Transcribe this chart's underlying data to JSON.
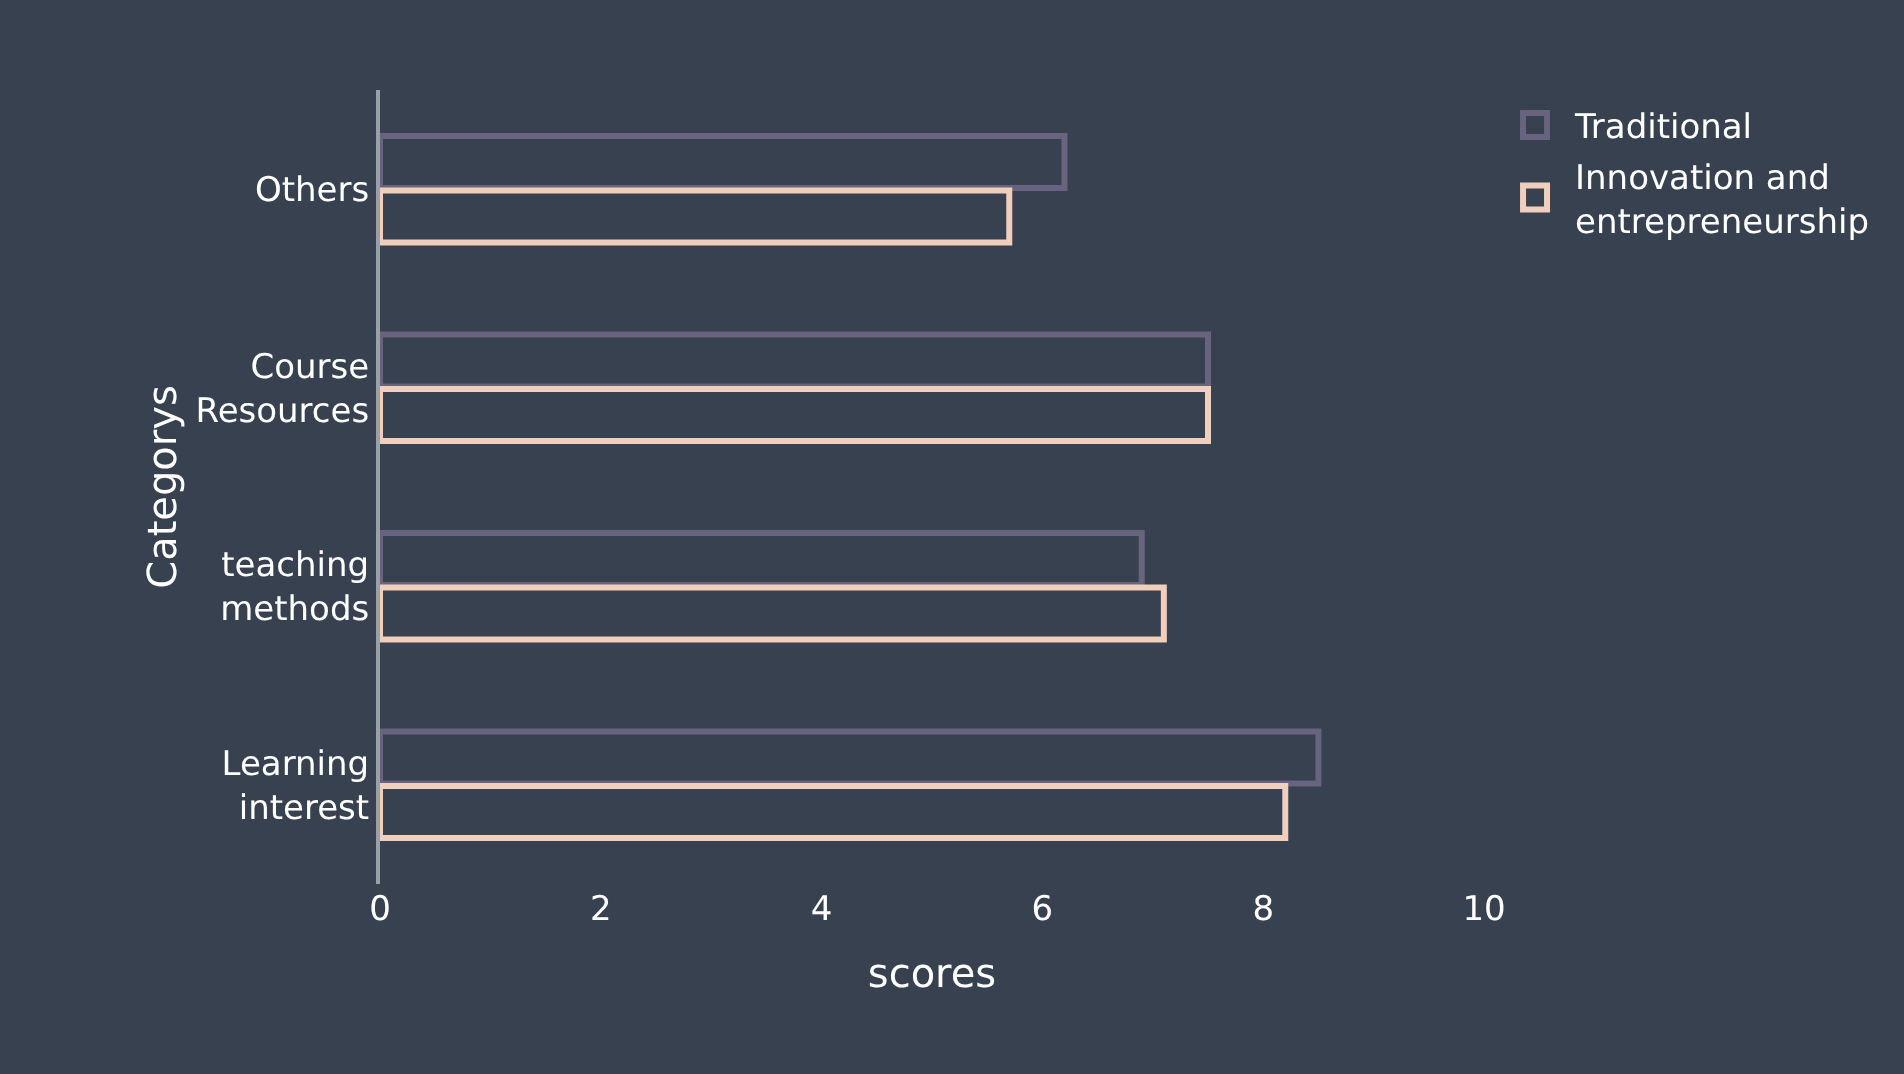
{
  "chart_data": {
    "type": "bar",
    "orientation": "horizontal",
    "xlabel": "scores",
    "ylabel": "Categorys",
    "categories": [
      "Others",
      "Course Resources",
      "teaching methods",
      "Learning interest"
    ],
    "series": [
      {
        "name": "Traditional",
        "color": "#686480",
        "values": [
          6.2,
          7.5,
          6.9,
          8.5
        ]
      },
      {
        "name": "Innovation and entrepreneurship",
        "color": "#f0d0bc",
        "values": [
          5.7,
          7.5,
          7.1,
          8.2
        ]
      }
    ],
    "xlim": [
      0,
      10
    ],
    "xticks": [
      0,
      2,
      4,
      6,
      8,
      10
    ],
    "grid": false,
    "legend": "right"
  }
}
